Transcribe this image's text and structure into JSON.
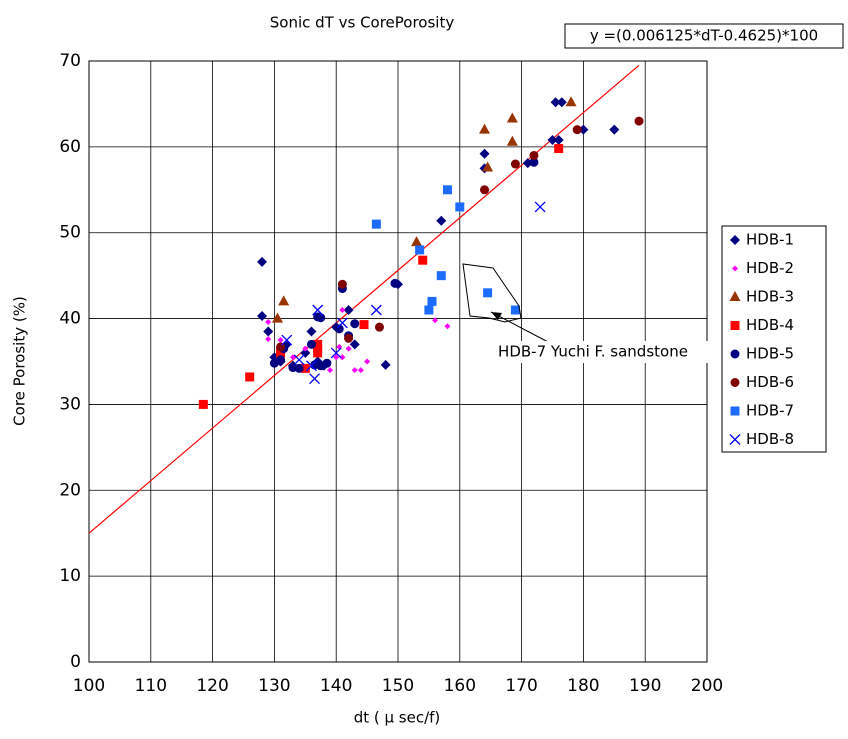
{
  "chart_data": {
    "type": "scatter",
    "title": "Sonic dT vs CorePorosity",
    "x_label": "dt ( μ sec/f)",
    "y_label": "Core Porosity (%)",
    "xlim": [
      100,
      200
    ],
    "xticks": [
      100,
      110,
      120,
      130,
      140,
      150,
      160,
      170,
      180,
      190,
      200
    ],
    "ylim": [
      0,
      70
    ],
    "yticks": [
      0,
      10,
      20,
      30,
      40,
      50,
      60,
      70
    ],
    "grid": true,
    "legend": "right",
    "trendline": {
      "label": "y =(0.006125*dT-0.4625)*100",
      "color": "#ff0000",
      "x": [
        100,
        189
      ],
      "y": [
        15,
        69.5
      ]
    },
    "annotation": "HDB-7 Yuchi F. sandstone",
    "series": [
      {
        "name": "HDB-1",
        "color": "#000080",
        "marker": "diamond",
        "x": [
          128,
          128,
          129,
          130,
          131,
          132,
          133,
          135,
          136,
          137,
          138,
          140,
          142,
          143,
          148,
          150,
          157,
          164,
          164,
          171,
          175,
          175.5,
          176.5,
          176,
          180,
          185
        ],
        "y": [
          46.6,
          40.3,
          38.5,
          35.5,
          35,
          37,
          34.5,
          36,
          38.5,
          35,
          34.5,
          39,
          41,
          37,
          34.6,
          44,
          51.4,
          59.2,
          57.5,
          58.1,
          60.8,
          65.2,
          65.2,
          60.8,
          62,
          62
        ]
      },
      {
        "name": "HDB-2",
        "color": "#ff00ff",
        "marker": "small-diamond",
        "x": [
          129,
          129,
          131,
          133,
          135,
          137,
          139,
          140,
          141,
          142,
          143,
          144,
          145,
          141,
          156,
          158,
          140.5
        ],
        "y": [
          39.6,
          37.6,
          37.5,
          35.5,
          36.5,
          36,
          34,
          35.5,
          35.5,
          36.5,
          34,
          34,
          35,
          41,
          39.8,
          39.1,
          36.7
        ]
      },
      {
        "name": "HDB-3",
        "color": "#993300",
        "marker": "triangle",
        "x": [
          130.5,
          131.5,
          153,
          164,
          164.5,
          168.5,
          168.5,
          178
        ],
        "y": [
          40,
          42,
          48.9,
          62,
          57.6,
          63.3,
          60.6,
          65.2
        ]
      },
      {
        "name": "HDB-4",
        "color": "#ff0000",
        "marker": "square",
        "x": [
          118.5,
          126,
          131,
          135,
          137,
          137,
          137,
          144.5,
          154,
          176
        ],
        "y": [
          30,
          33.2,
          36,
          34.2,
          37,
          36.5,
          36,
          39.3,
          46.8,
          59.8
        ]
      },
      {
        "name": "HDB-5",
        "color": "#000080",
        "marker": "circle",
        "x": [
          130,
          131,
          131.5,
          133,
          134,
          136,
          136.5,
          137.5,
          137.5,
          138.5,
          140.5,
          141,
          142,
          143,
          149.5,
          172,
          137
        ],
        "y": [
          34.8,
          35.2,
          36.5,
          34.3,
          34.2,
          37,
          34.6,
          34.5,
          40.1,
          34.8,
          38.8,
          43.5,
          38,
          39.4,
          44.1,
          58.2,
          40.2
        ]
      },
      {
        "name": "HDB-6",
        "color": "#800000",
        "marker": "circle",
        "x": [
          131,
          141,
          142,
          147,
          164,
          169,
          172,
          179,
          189
        ],
        "y": [
          36.7,
          44,
          37.7,
          39,
          55,
          58,
          59,
          62,
          63
        ]
      },
      {
        "name": "HDB-7",
        "color": "#1e6cff",
        "marker": "square",
        "x": [
          146.5,
          153.5,
          155,
          155.5,
          157,
          158,
          160,
          164.5,
          169
        ],
        "y": [
          51,
          48,
          41,
          42,
          45,
          55,
          53,
          43,
          41
        ]
      },
      {
        "name": "HDB-8",
        "color": "#0000ff",
        "marker": "x",
        "x": [
          132,
          134,
          136,
          136.5,
          137,
          146.5,
          140,
          173,
          141
        ],
        "y": [
          37.5,
          35.2,
          34.5,
          33,
          41,
          41,
          36,
          53,
          39.5
        ]
      }
    ]
  }
}
